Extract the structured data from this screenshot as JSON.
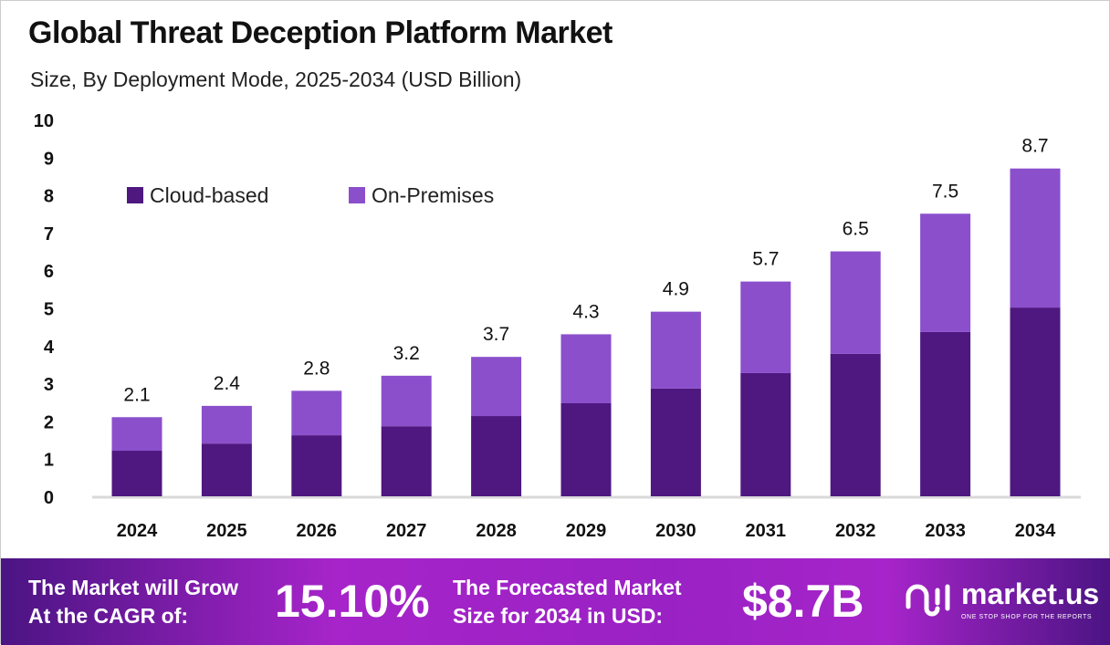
{
  "title": "Global Threat Deception Platform Market",
  "subtitle": "Size, By Deployment Mode, 2025-2034 (USD Billion)",
  "chart_data": {
    "type": "bar",
    "stacked": true,
    "categories": [
      "2024",
      "2025",
      "2026",
      "2027",
      "2028",
      "2029",
      "2030",
      "2031",
      "2032",
      "2033",
      "2034"
    ],
    "series": [
      {
        "name": "Cloud-based",
        "color": "#4f1780",
        "values": [
          1.21,
          1.4,
          1.62,
          1.86,
          2.13,
          2.47,
          2.86,
          3.27,
          3.78,
          4.36,
          5.01
        ]
      },
      {
        "name": "On-Premises",
        "color": "#8b4fcc",
        "values": [
          0.89,
          1.0,
          1.18,
          1.34,
          1.57,
          1.83,
          2.04,
          2.43,
          2.72,
          3.14,
          3.69
        ]
      }
    ],
    "totals": [
      "2.1",
      "2.4",
      "2.8",
      "3.2",
      "3.7",
      "4.3",
      "4.9",
      "5.7",
      "6.5",
      "7.5",
      "8.7"
    ],
    "yticks": [
      "0",
      "1",
      "2",
      "3",
      "4",
      "5",
      "6",
      "7",
      "8",
      "9",
      "10"
    ],
    "ylim": [
      0,
      10
    ],
    "grid": false,
    "legend_placement": "top-left"
  },
  "footer": {
    "cagr_label_1": "The Market will Grow",
    "cagr_label_2": "At the CAGR of:",
    "cagr_value": "15.10%",
    "forecast_label_1": "The Forecasted Market",
    "forecast_label_2": "Size for 2034 in USD:",
    "forecast_value": "$8.7B",
    "logo_name": "market.us",
    "logo_tagline": "ONE STOP SHOP FOR THE REPORTS"
  }
}
